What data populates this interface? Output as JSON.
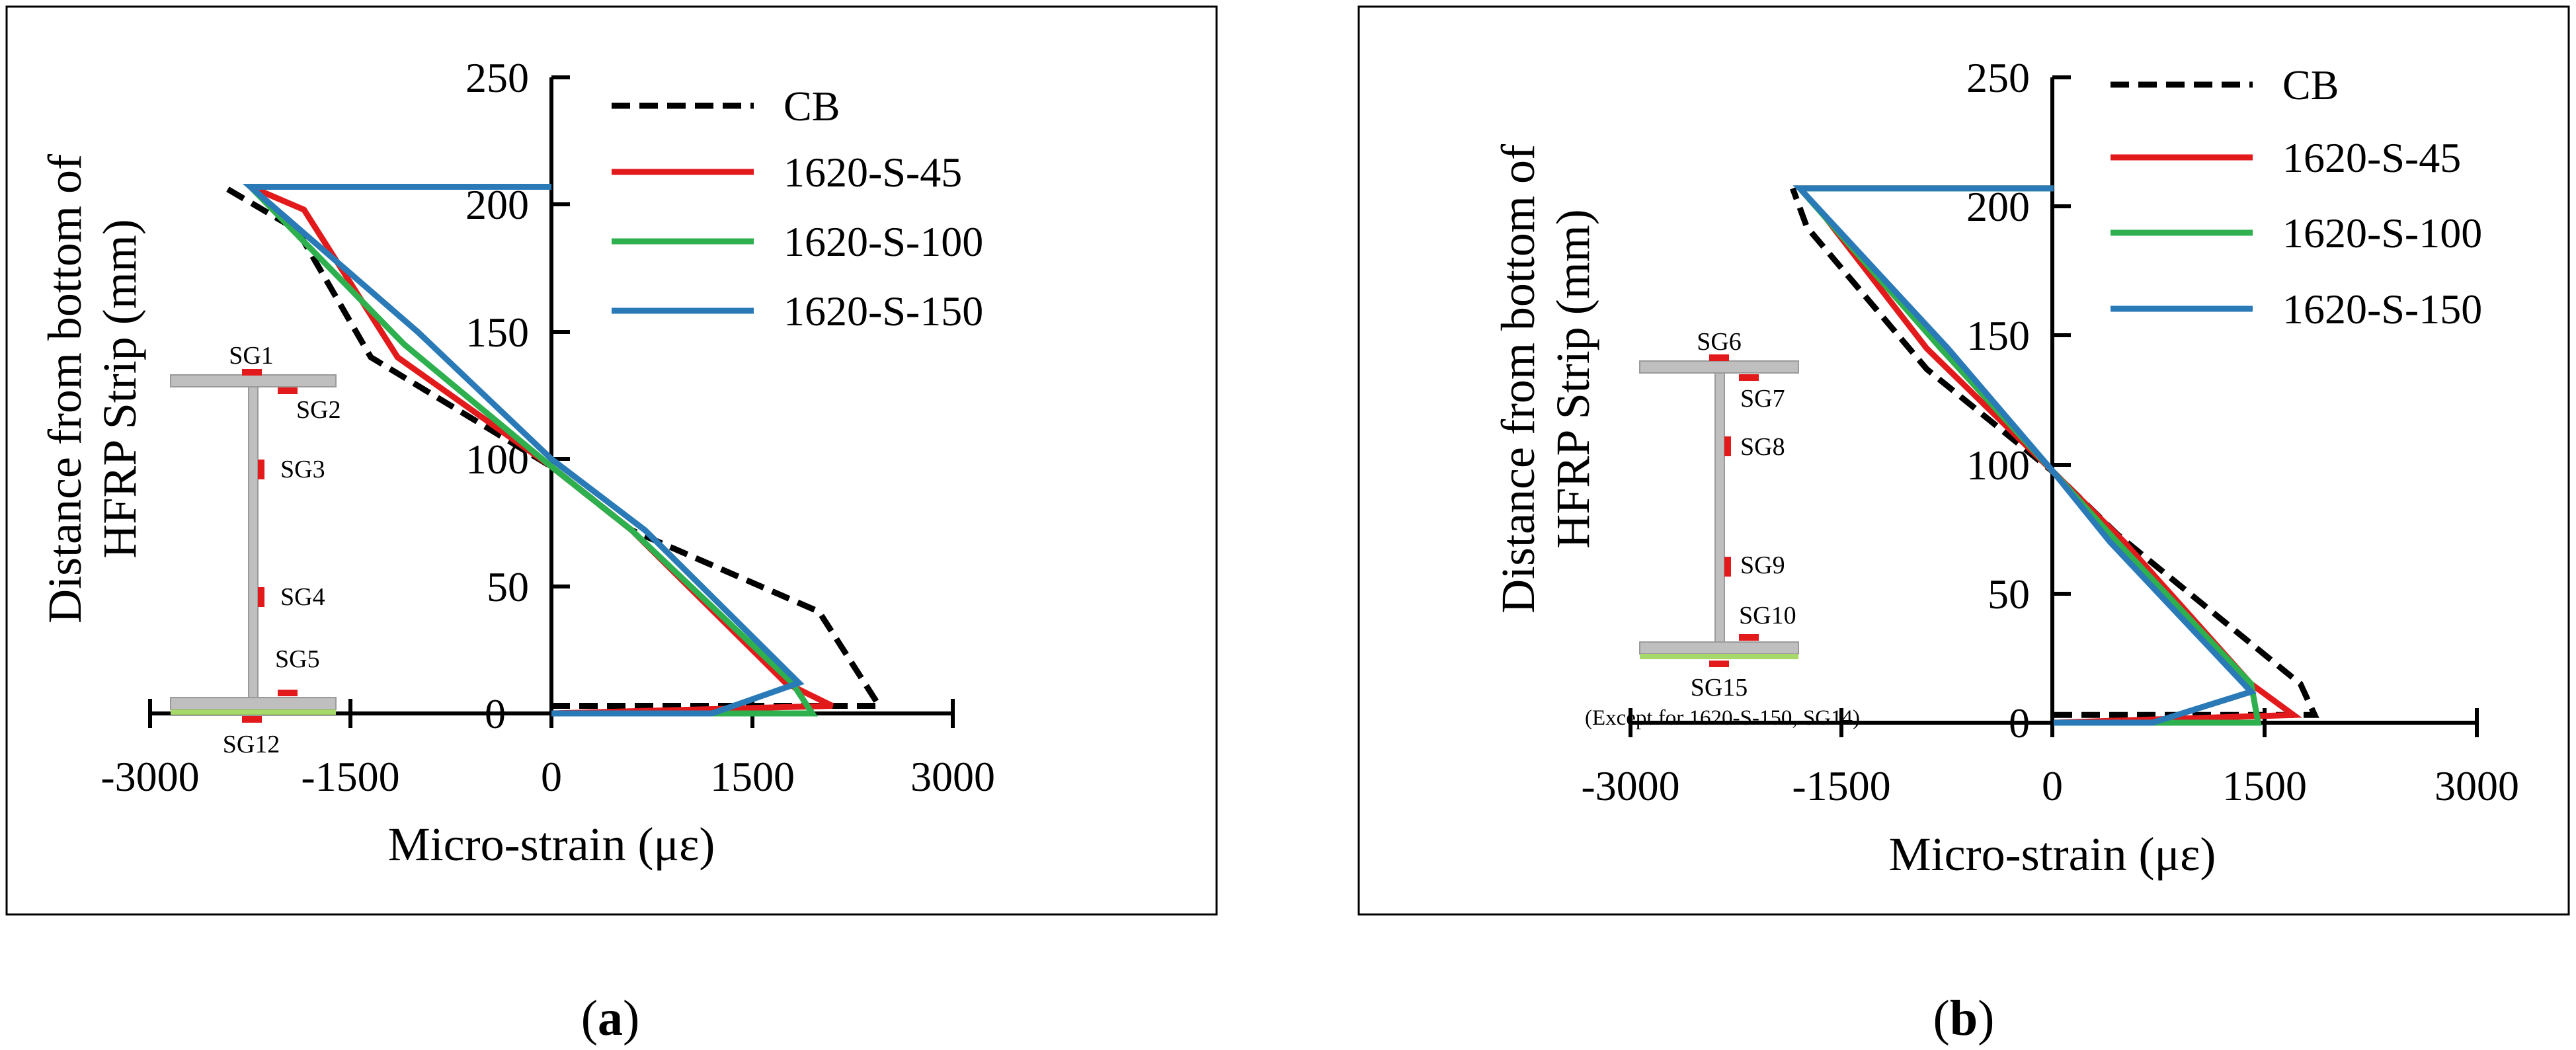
{
  "colors": {
    "CB": "#000000",
    "1620-S-45": "#e31a1c",
    "1620-S-100": "#2eb04f",
    "1620-S-150": "#2a7ab8",
    "beam": "#bfbfbf",
    "strain_gauge": "#e31a1c",
    "hfrp_strip": "#a6d96a"
  },
  "chart_data": [
    {
      "type": "line",
      "panel": "a",
      "caption_open": "(",
      "caption_letter": "a",
      "caption_close": ")",
      "xlabel": "Micro-strain (με)",
      "ylabel_line1": "Distance from bottom of",
      "ylabel_line2": "HFRP Strip (mm)",
      "xlim": [
        -3000,
        3000
      ],
      "ylim": [
        0,
        250
      ],
      "xticks": [
        "-3000",
        "-1500",
        "0",
        "1500",
        "3000"
      ],
      "yticks": [
        "0",
        "50",
        "100",
        "150",
        "200",
        "250"
      ],
      "legend": [
        "CB",
        "1620-S-45",
        "1620-S-100",
        "1620-S-150"
      ],
      "series": [
        {
          "name": "CB",
          "dashed": true,
          "points": [
            [
              0,
              3
            ],
            [
              2450,
              3
            ],
            [
              2000,
              40
            ],
            [
              600,
              72
            ],
            [
              0,
              97
            ],
            [
              -1350,
              140
            ],
            [
              -1900,
              190
            ],
            [
              -2450,
              207
            ]
          ]
        },
        {
          "name": "1620-S-45",
          "dashed": false,
          "points": [
            [
              0,
              207
            ],
            [
              -2250,
              207
            ],
            [
              -1850,
              198
            ],
            [
              -1150,
              140
            ],
            [
              0,
              97
            ],
            [
              600,
              72
            ],
            [
              1750,
              12
            ],
            [
              2100,
              3
            ],
            [
              0,
              0
            ]
          ]
        },
        {
          "name": "1620-S-100",
          "dashed": false,
          "points": [
            [
              0,
              207
            ],
            [
              -2250,
              207
            ],
            [
              -1100,
              145
            ],
            [
              0,
              97
            ],
            [
              600,
              72
            ],
            [
              1800,
              12
            ],
            [
              1950,
              0
            ],
            [
              0,
              0
            ]
          ]
        },
        {
          "name": "1620-S-150",
          "dashed": false,
          "points": [
            [
              0,
              207
            ],
            [
              -2250,
              207
            ],
            [
              -1000,
              150
            ],
            [
              0,
              100
            ],
            [
              700,
              72
            ],
            [
              1850,
              12
            ],
            [
              1200,
              0
            ],
            [
              0,
              0
            ]
          ]
        }
      ],
      "diagram_labels": [
        "SG1",
        "SG2",
        "SG3",
        "SG4",
        "SG5",
        "SG12"
      ]
    },
    {
      "type": "line",
      "panel": "b",
      "caption_open": "(",
      "caption_letter": "b",
      "caption_close": ")",
      "xlabel": "Micro-strain (με)",
      "ylabel_line1": "Distance from bottom of",
      "ylabel_line2": "HFRP Strip (mm)",
      "xlim": [
        -3000,
        3000
      ],
      "ylim": [
        0,
        250
      ],
      "xticks": [
        "-3000",
        "-1500",
        "0",
        "1500",
        "3000"
      ],
      "yticks": [
        "0",
        "50",
        "100",
        "150",
        "200",
        "250"
      ],
      "legend": [
        "CB",
        "1620-S-45",
        "1620-S-100",
        "1620-S-150"
      ],
      "series": [
        {
          "name": "CB",
          "dashed": true,
          "points": [
            [
              0,
              3
            ],
            [
              1850,
              3
            ],
            [
              1750,
              15
            ],
            [
              450,
              73
            ],
            [
              0,
              97
            ],
            [
              -900,
              137
            ],
            [
              -1750,
              192
            ],
            [
              -1850,
              207
            ]
          ]
        },
        {
          "name": "1620-S-45",
          "dashed": false,
          "points": [
            [
              0,
              207
            ],
            [
              -1800,
              207
            ],
            [
              -1650,
              198
            ],
            [
              -900,
              145
            ],
            [
              0,
              97
            ],
            [
              500,
              70
            ],
            [
              1400,
              15
            ],
            [
              1700,
              3
            ],
            [
              0,
              0
            ]
          ]
        },
        {
          "name": "1620-S-100",
          "dashed": false,
          "points": [
            [
              0,
              207
            ],
            [
              -1800,
              207
            ],
            [
              -800,
              145
            ],
            [
              0,
              97
            ],
            [
              450,
              70
            ],
            [
              1400,
              15
            ],
            [
              1450,
              0
            ],
            [
              0,
              0
            ]
          ]
        },
        {
          "name": "1620-S-150",
          "dashed": false,
          "points": [
            [
              0,
              207
            ],
            [
              -1800,
              207
            ],
            [
              -750,
              145
            ],
            [
              0,
              97
            ],
            [
              400,
              70
            ],
            [
              1400,
              12
            ],
            [
              700,
              0
            ],
            [
              0,
              0
            ]
          ]
        }
      ],
      "diagram_labels": [
        "SG6",
        "SG7",
        "SG8",
        "SG9",
        "SG10",
        "SG15"
      ],
      "diagram_note": "(Except for 1620-S-150, SG14)"
    }
  ]
}
